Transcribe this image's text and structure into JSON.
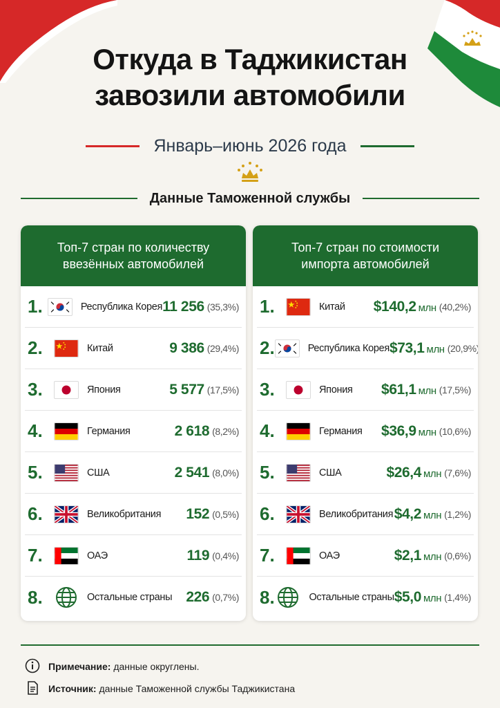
{
  "header": {
    "title_line1": "Откуда в Таджикистан",
    "title_line2": "завозили автомобили",
    "period": "Январь–июнь 2026 года",
    "source_title": "Данные Таможенной службы"
  },
  "colors": {
    "accent_green": "#1e6b2f",
    "accent_red": "#d62828"
  },
  "left_panel": {
    "header_line1": "Топ-7 стран по количеству",
    "header_line2": "ввезённых автомобилей",
    "rows": [
      {
        "rank": "1.",
        "flag": "south-korea-flag",
        "country": "Республика Корея",
        "value": "11 256",
        "pct": "(35,3%)"
      },
      {
        "rank": "2.",
        "flag": "china-flag",
        "country": "Китай",
        "value": "9 386",
        "pct": "(29,4%)"
      },
      {
        "rank": "3.",
        "flag": "japan-flag",
        "country": "Япония",
        "value": "5 577",
        "pct": "(17,5%)"
      },
      {
        "rank": "4.",
        "flag": "germany-flag",
        "country": "Германия",
        "value": "2 618",
        "pct": "(8,2%)"
      },
      {
        "rank": "5.",
        "flag": "usa-flag",
        "country": "США",
        "value": "2 541",
        "pct": "(8,0%)"
      },
      {
        "rank": "6.",
        "flag": "uk-flag",
        "country": "Великобритания",
        "value": "152",
        "pct": "(0,5%)"
      },
      {
        "rank": "7.",
        "flag": "uae-flag",
        "country": "ОАЭ",
        "value": "119",
        "pct": "(0,4%)"
      },
      {
        "rank": "8.",
        "flag": "globe-icon",
        "country": "Остальные страны",
        "value": "226",
        "pct": "(0,7%)"
      }
    ]
  },
  "right_panel": {
    "header_line1": "Топ-7 стран по стоимости",
    "header_line2": "импорта автомобилей",
    "unit": "млн",
    "rows": [
      {
        "rank": "1.",
        "flag": "china-flag",
        "country": "Китай",
        "value": "$140,2",
        "pct": "(40,2%)"
      },
      {
        "rank": "2.",
        "flag": "south-korea-flag",
        "country": "Республика Корея",
        "value": "$73,1",
        "pct": "(20,9%)"
      },
      {
        "rank": "3.",
        "flag": "japan-flag",
        "country": "Япония",
        "value": "$61,1",
        "pct": "(17,5%)"
      },
      {
        "rank": "4.",
        "flag": "germany-flag",
        "country": "Германия",
        "value": "$36,9",
        "pct": "(10,6%)"
      },
      {
        "rank": "5.",
        "flag": "usa-flag",
        "country": "США",
        "value": "$26,4",
        "pct": "(7,6%)"
      },
      {
        "rank": "6.",
        "flag": "uk-flag",
        "country": "Великобритания",
        "value": "$4,2",
        "pct": "(1,2%)"
      },
      {
        "rank": "7.",
        "flag": "uae-flag",
        "country": "ОАЭ",
        "value": "$2,1",
        "pct": "(0,6%)"
      },
      {
        "rank": "8.",
        "flag": "globe-icon",
        "country": "Остальные страны",
        "value": "$5,0",
        "pct": "(1,4%)"
      }
    ]
  },
  "footer": {
    "note_label": "Примечание:",
    "note_text": "данные округлены.",
    "source_label": "Источник:",
    "source_text": "данные Таможенной службы Таджикистана"
  }
}
